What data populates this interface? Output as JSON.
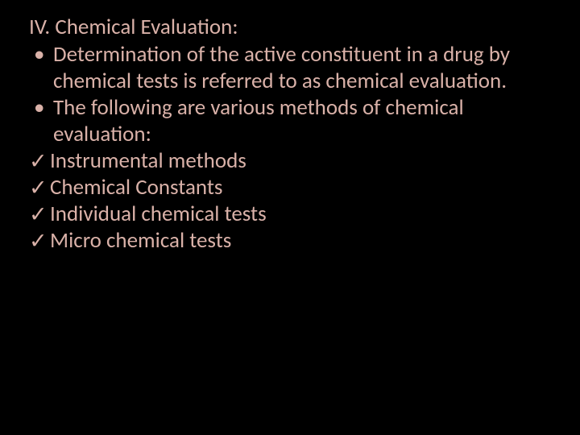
{
  "colors": {
    "background": "#000000",
    "text": "#d9b1a8"
  },
  "typography": {
    "font_family": "Calibri",
    "font_size_pt": 20,
    "line_height": 1.22
  },
  "slide": {
    "heading": "IV. Chemical Evaluation:",
    "bullets": [
      "Determination of the active constituent in a drug by chemical tests is referred to as chemical evaluation.",
      "The following are various methods of chemical evaluation:"
    ],
    "bullet_marker": "•",
    "check_marker": "✓",
    "check_items": [
      "Instrumental methods",
      "Chemical Constants",
      "Individual chemical tests",
      "Micro chemical tests"
    ]
  }
}
